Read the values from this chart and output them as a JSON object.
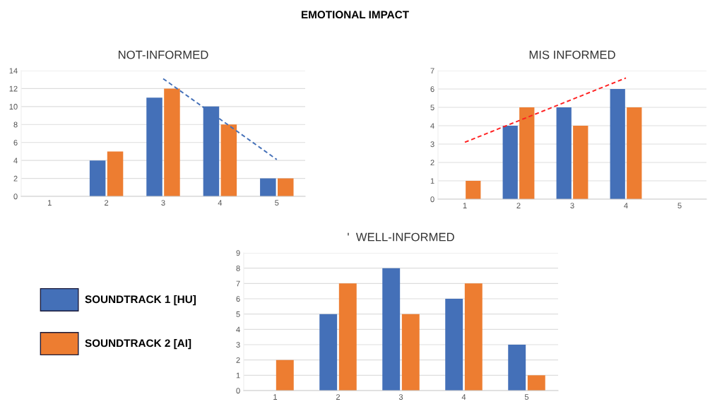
{
  "chart_data": [
    {
      "type": "bar",
      "title": "NOT-INFORMED",
      "annotations": [
        "EMOTIONAL IMPACT"
      ],
      "categories": [
        "1",
        "2",
        "3",
        "4",
        "5"
      ],
      "series": [
        {
          "color": "#4470b8",
          "values": [
            0,
            4,
            11,
            10,
            2
          ]
        },
        {
          "color": "#ed7d31",
          "values": [
            0,
            5,
            12,
            8,
            2
          ]
        },
        {
          "type": "line",
          "color": "#4470b8",
          "line_style": "dashed",
          "x": [
            "3",
            "5"
          ],
          "values": [
            13.1,
            4.1
          ]
        }
      ],
      "ylim": [
        0,
        14
      ],
      "yticks": [
        0,
        2,
        4,
        6,
        8,
        10,
        12,
        14
      ],
      "grid": "y"
    },
    {
      "type": "bar",
      "title": "MIS INFORMED",
      "categories": [
        "1",
        "2",
        "3",
        "4",
        "5"
      ],
      "series": [
        {
          "color": "#4470b8",
          "values": [
            0,
            4,
            5,
            6,
            0
          ]
        },
        {
          "color": "#ed7d31",
          "values": [
            1,
            5,
            4,
            5,
            0
          ]
        },
        {
          "type": "line",
          "color": "#ff2020",
          "line_style": "dashed",
          "x": [
            "1",
            "4"
          ],
          "values": [
            3.1,
            6.6
          ]
        }
      ],
      "ylim": [
        0,
        7
      ],
      "yticks": [
        0,
        1,
        2,
        3,
        4,
        5,
        6,
        7
      ],
      "grid": "y"
    },
    {
      "type": "bar",
      "title": "'  WELL-INFORMED",
      "categories": [
        "1",
        "2",
        "3",
        "4",
        "5"
      ],
      "series": [
        {
          "name": "SOUNDTRACK 1 [HU]",
          "color": "#4470b8",
          "values": [
            0,
            5,
            8,
            6,
            3
          ]
        },
        {
          "name": "SOUNDTRACK 2 [AI]",
          "color": "#ed7d31",
          "values": [
            2,
            7,
            5,
            7,
            1
          ]
        }
      ],
      "ylim": [
        0,
        9
      ],
      "yticks": [
        0,
        1,
        2,
        3,
        4,
        5,
        6,
        7,
        8,
        9
      ],
      "grid": "y",
      "legend": "left"
    }
  ]
}
